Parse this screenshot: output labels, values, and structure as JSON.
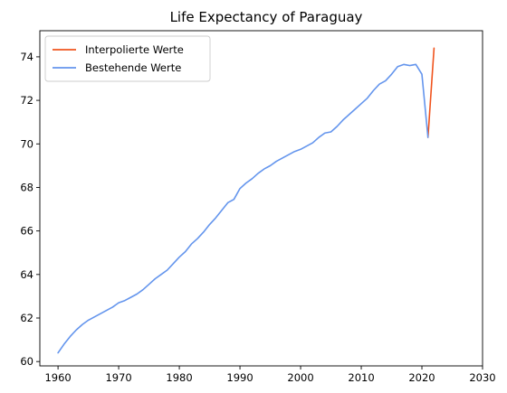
{
  "chart_data": {
    "type": "line",
    "title": "Life Expectancy of Paraguay",
    "xlabel": "",
    "ylabel": "",
    "xlim": [
      1957,
      2030
    ],
    "ylim": [
      59.8,
      75.2
    ],
    "xticks": [
      1960,
      1970,
      1980,
      1990,
      2000,
      2010,
      2020,
      2030
    ],
    "yticks": [
      60,
      62,
      64,
      66,
      68,
      70,
      72,
      74
    ],
    "grid": false,
    "legend_position": "upper-left",
    "series": [
      {
        "name": "Interpolierte Werte",
        "color": "#f0541e",
        "x": [
          2021,
          2022
        ],
        "y": [
          70.3,
          74.4
        ]
      },
      {
        "name": "Bestehende Werte",
        "color": "#6495ed",
        "x": [
          1960,
          1961,
          1962,
          1963,
          1964,
          1965,
          1966,
          1967,
          1968,
          1969,
          1970,
          1971,
          1972,
          1973,
          1974,
          1975,
          1976,
          1977,
          1978,
          1979,
          1980,
          1981,
          1982,
          1983,
          1984,
          1985,
          1986,
          1987,
          1988,
          1989,
          1990,
          1991,
          1992,
          1993,
          1994,
          1995,
          1996,
          1997,
          1998,
          1999,
          2000,
          2001,
          2002,
          2003,
          2004,
          2005,
          2006,
          2007,
          2008,
          2009,
          2010,
          2011,
          2012,
          2013,
          2014,
          2015,
          2016,
          2017,
          2018,
          2019,
          2020,
          2021
        ],
        "y": [
          60.4,
          60.8,
          61.15,
          61.45,
          61.7,
          61.9,
          62.05,
          62.2,
          62.35,
          62.5,
          62.7,
          62.8,
          62.95,
          63.1,
          63.3,
          63.55,
          63.8,
          64.0,
          64.2,
          64.5,
          64.8,
          65.05,
          65.4,
          65.65,
          65.95,
          66.3,
          66.6,
          66.95,
          67.3,
          67.45,
          67.95,
          68.2,
          68.4,
          68.65,
          68.85,
          69.0,
          69.2,
          69.35,
          69.5,
          69.65,
          69.75,
          69.9,
          70.05,
          70.3,
          70.5,
          70.55,
          70.8,
          71.1,
          71.35,
          71.6,
          71.85,
          72.1,
          72.45,
          72.75,
          72.9,
          73.2,
          73.55,
          73.65,
          73.6,
          73.65,
          73.2,
          70.3
        ]
      }
    ]
  }
}
